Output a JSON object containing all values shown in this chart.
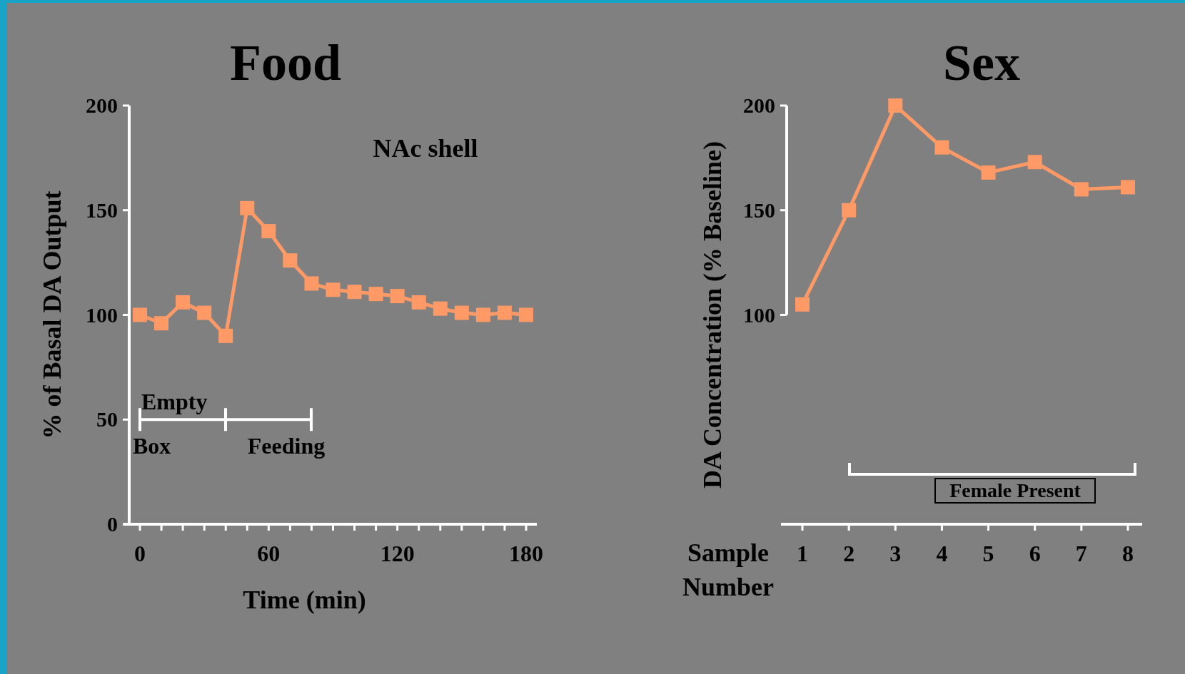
{
  "chart_data": [
    {
      "type": "line",
      "title": "Food",
      "xlabel": "Time (min)",
      "ylabel": "% of Basal DA Output",
      "x": [
        0,
        10,
        20,
        30,
        40,
        50,
        60,
        70,
        80,
        90,
        100,
        110,
        120,
        130,
        140,
        150,
        160,
        170,
        180
      ],
      "series": [
        {
          "color": "#ff9966",
          "values": [
            100,
            96,
            106,
            101,
            90,
            151,
            140,
            126,
            115,
            112,
            111,
            110,
            109,
            106,
            103,
            101,
            100,
            101,
            100
          ]
        }
      ],
      "xlim": [
        -5,
        185
      ],
      "xticks": [
        0,
        {
          "value": 10,
          "label": null
        },
        {
          "value": 20,
          "label": null
        },
        {
          "value": 30,
          "label": null
        },
        {
          "value": 40,
          "label": null
        },
        {
          "value": 50,
          "label": null
        },
        60,
        {
          "value": 70,
          "label": null
        },
        {
          "value": 80,
          "label": null
        },
        {
          "value": 90,
          "label": null
        },
        {
          "value": 100,
          "label": null
        },
        {
          "value": 110,
          "label": null
        },
        120,
        {
          "value": 130,
          "label": null
        },
        {
          "value": 140,
          "label": null
        },
        {
          "value": 150,
          "label": null
        },
        {
          "value": 160,
          "label": null
        },
        {
          "value": 170,
          "label": null
        },
        180
      ],
      "ylim": [
        0,
        200
      ],
      "yticks": [
        0,
        50,
        100,
        150,
        200
      ],
      "marker": "square",
      "annotations": [
        "NAc shell",
        "Empty Box",
        "Feeding"
      ]
    },
    {
      "type": "line",
      "title": "Sex",
      "xlabel": "Sample Number",
      "ylabel": "DA Concentration (% Baseline)",
      "categories": [
        "1",
        "2",
        "3",
        "4",
        "5",
        "6",
        "7",
        "8"
      ],
      "series": [
        {
          "color": "#ff9966",
          "values": [
            105,
            150,
            200,
            180,
            168,
            173,
            160,
            161
          ]
        }
      ],
      "ylim": [
        0,
        200
      ],
      "yticks": [
        100,
        150,
        200
      ],
      "marker": "square",
      "annotations": [
        "Female Present"
      ]
    }
  ]
}
